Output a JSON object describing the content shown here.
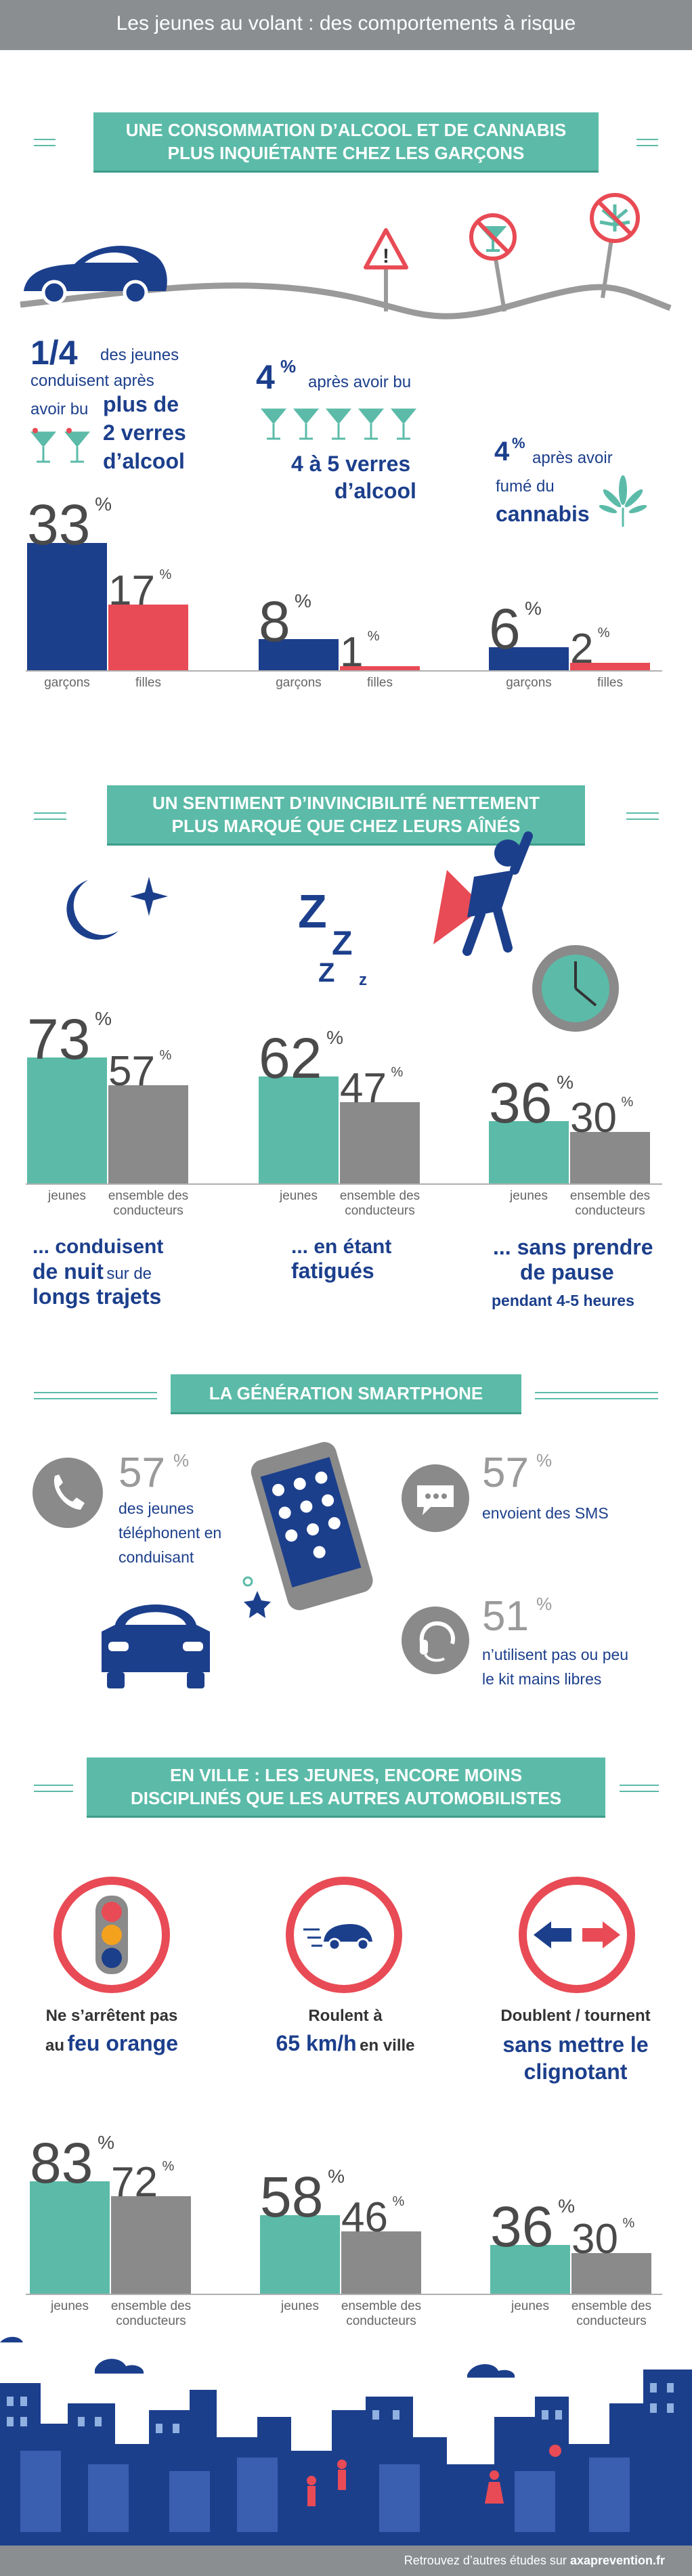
{
  "header": {
    "title": "Les jeunes au volant : des comportements à risque"
  },
  "colors": {
    "navy": "#1c3f8c",
    "red": "#e84b55",
    "teal": "#5bbba8",
    "gray": "#8a8a8a"
  },
  "section1": {
    "banner": [
      "UNE CONSOMMATION D’ALCOOL ET DE CANNABIS",
      "PLUS INQUIÉTANTE CHEZ LES GARÇONS"
    ],
    "stat1": {
      "value": "1/4",
      "text_a": "des jeunes",
      "text_b": "conduisent après",
      "text_c": "avoir bu",
      "bold_a": "plus de",
      "bold_b": "2 verres",
      "bold_c": "d’alcool"
    },
    "stat2": {
      "value": "4",
      "sup": "%",
      "text": "après avoir bu",
      "bold_a": "4 à 5 verres",
      "bold_b": "d’alcool"
    },
    "stat3": {
      "value": "4",
      "sup": "%",
      "text_a": "après avoir",
      "text_b": "fumé du",
      "bold": "cannabis"
    }
  },
  "section2": {
    "banner": [
      "UN SENTIMENT D’INVINCIBILITÉ NETTEMENT",
      "PLUS MARQUÉ QUE CHEZ LEURS AÎNÉS"
    ],
    "cap1": {
      "bold_a": "... conduisent",
      "bold_b": "de nuit",
      "text": "sur de",
      "bold_c": "longs trajets"
    },
    "cap2": {
      "bold_a": "... en étant",
      "bold_b": "fatigués"
    },
    "cap3": {
      "bold_a": "... sans prendre",
      "bold_b": "de pause",
      "text": "pendant 4-5 heures"
    }
  },
  "section3": {
    "banner": "LA GÉNÉRATION SMARTPHONE",
    "stat1": {
      "value": "57",
      "sup": "%",
      "lines": [
        "des jeunes",
        "téléphonent en",
        "conduisant"
      ]
    },
    "stat2": {
      "value": "57",
      "sup": "%",
      "text": "envoient des SMS"
    },
    "stat3": {
      "value": "51",
      "sup": "%",
      "lines": [
        "n’utilisent pas ou peu",
        "le kit mains libres"
      ]
    }
  },
  "section4": {
    "banner": [
      "EN VILLE : LES JEUNES, ENCORE MOINS",
      "DISCIPLINÉS QUE LES AUTRES AUTOMOBILISTES"
    ],
    "cap1": {
      "text_a": "Ne s’arrêtent pas",
      "text_b": "au",
      "bold": "feu orange"
    },
    "cap2": {
      "text_a": "Roulent à",
      "bold": "65 km/h",
      "text_b": "en ville"
    },
    "cap3": {
      "text_a": "Doublent / tournent",
      "bold_a": "sans mettre le",
      "bold_b": "clignotant"
    }
  },
  "chart_data": [
    {
      "type": "bar",
      "categories": [
        "plus de 2 verres d’alcool",
        "4 à 5 verres d’alcool",
        "fumé du cannabis"
      ],
      "series": [
        {
          "name": "garçons",
          "values": [
            33,
            8,
            6
          ]
        },
        {
          "name": "filles",
          "values": [
            17,
            1,
            2
          ]
        }
      ],
      "labels": [
        "garçons",
        "filles"
      ],
      "unit": "%"
    },
    {
      "type": "bar",
      "categories": [
        "de nuit sur de longs trajets",
        "fatigués",
        "sans prendre de pause"
      ],
      "series": [
        {
          "name": "jeunes",
          "values": [
            73,
            62,
            36
          ]
        },
        {
          "name": "ensemble des conducteurs",
          "values": [
            57,
            47,
            30
          ]
        }
      ],
      "labels": [
        "jeunes",
        "ensemble des conducteurs"
      ],
      "unit": "%"
    },
    {
      "type": "bar",
      "categories": [
        "feu orange",
        "65 km/h en ville",
        "sans mettre le clignotant"
      ],
      "series": [
        {
          "name": "jeunes",
          "values": [
            83,
            58,
            36
          ]
        },
        {
          "name": "ensemble des conducteurs",
          "values": [
            72,
            46,
            30
          ]
        }
      ],
      "labels": [
        "jeunes",
        "ensemble des conducteurs"
      ],
      "unit": "%"
    }
  ],
  "footer": {
    "text": "Retrouvez d’autres études sur",
    "link": "axaprevention.fr"
  }
}
